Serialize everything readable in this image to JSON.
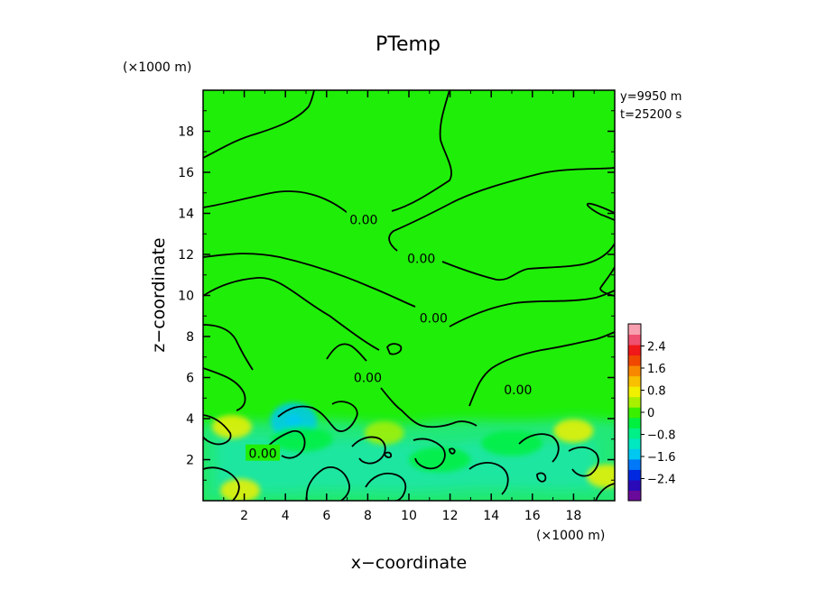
{
  "chart_data": {
    "type": "heatmap",
    "title": "PTemp",
    "xlabel": "x−coordinate",
    "ylabel": "z−coordinate",
    "x_unit": "(×1000 m)",
    "y_unit": "(×1000 m)",
    "xlim": [
      0,
      20
    ],
    "ylim": [
      0,
      20
    ],
    "x_ticks": [
      2,
      4,
      6,
      8,
      10,
      12,
      14,
      16,
      18
    ],
    "y_ticks": [
      2,
      4,
      6,
      8,
      10,
      12,
      14,
      16,
      18
    ],
    "x_tick_labels": [
      "2",
      "4",
      "6",
      "8",
      "10",
      "12",
      "14",
      "16",
      "18"
    ],
    "y_tick_labels": [
      "2",
      "4",
      "6",
      "8",
      "10",
      "12",
      "14",
      "16",
      "18"
    ],
    "info_lines": [
      "y=9950  m",
      "t=25200  s"
    ],
    "colorbar": {
      "range": [
        -3.2,
        3.2
      ],
      "ticks": [
        2.4,
        1.6,
        0.8,
        0,
        -0.8,
        -1.6,
        -2.4
      ],
      "tick_labels": [
        "2.4",
        "1.6",
        "0.8",
        "0",
        "−0.8",
        "−1.6",
        "−2.4"
      ],
      "colors": [
        "#6a0a9a",
        "#2a0ab8",
        "#0028e0",
        "#0078f8",
        "#00c8f0",
        "#00e8c0",
        "#00f088",
        "#00f040",
        "#3af000",
        "#a8f000",
        "#f0f000",
        "#f8c000",
        "#f88800",
        "#f04800",
        "#f01818",
        "#f05070",
        "#f8a0b0"
      ]
    },
    "contour_level": "0.00",
    "contour_labels": [
      {
        "text": "0.00",
        "x": 7.8,
        "z": 13.7
      },
      {
        "text": "0.00",
        "x": 10.6,
        "z": 11.8
      },
      {
        "text": "0.00",
        "x": 11.2,
        "z": 8.9
      },
      {
        "text": "0.00",
        "x": 8.0,
        "z": 6.0
      },
      {
        "text": "0.00",
        "x": 15.3,
        "z": 5.4
      },
      {
        "text": "0.00",
        "x": 2.9,
        "z": 2.3
      }
    ],
    "features": [
      {
        "kind": "cold_blob",
        "x": 4.4,
        "z": 3.9,
        "value": -1.4
      },
      {
        "kind": "warm_blob",
        "x": 18.0,
        "z": 3.4,
        "value": 0.8
      },
      {
        "kind": "warm_blob",
        "x": 1.4,
        "z": 3.6,
        "value": 0.6
      },
      {
        "kind": "warm_blob",
        "x": 8.8,
        "z": 3.3,
        "value": 0.5
      },
      {
        "kind": "warm_blob",
        "x": 1.8,
        "z": 0.5,
        "value": 0.6
      },
      {
        "kind": "warm_blob",
        "x": 19.6,
        "z": 1.2,
        "value": 0.7
      },
      {
        "kind": "cool_blob",
        "x": 4.8,
        "z": 3.0,
        "value": -0.5
      },
      {
        "kind": "cool_blob",
        "x": 15.0,
        "z": 2.8,
        "value": -0.4
      },
      {
        "kind": "cool_blob",
        "x": 11.5,
        "z": 2.0,
        "value": -0.3
      }
    ]
  }
}
